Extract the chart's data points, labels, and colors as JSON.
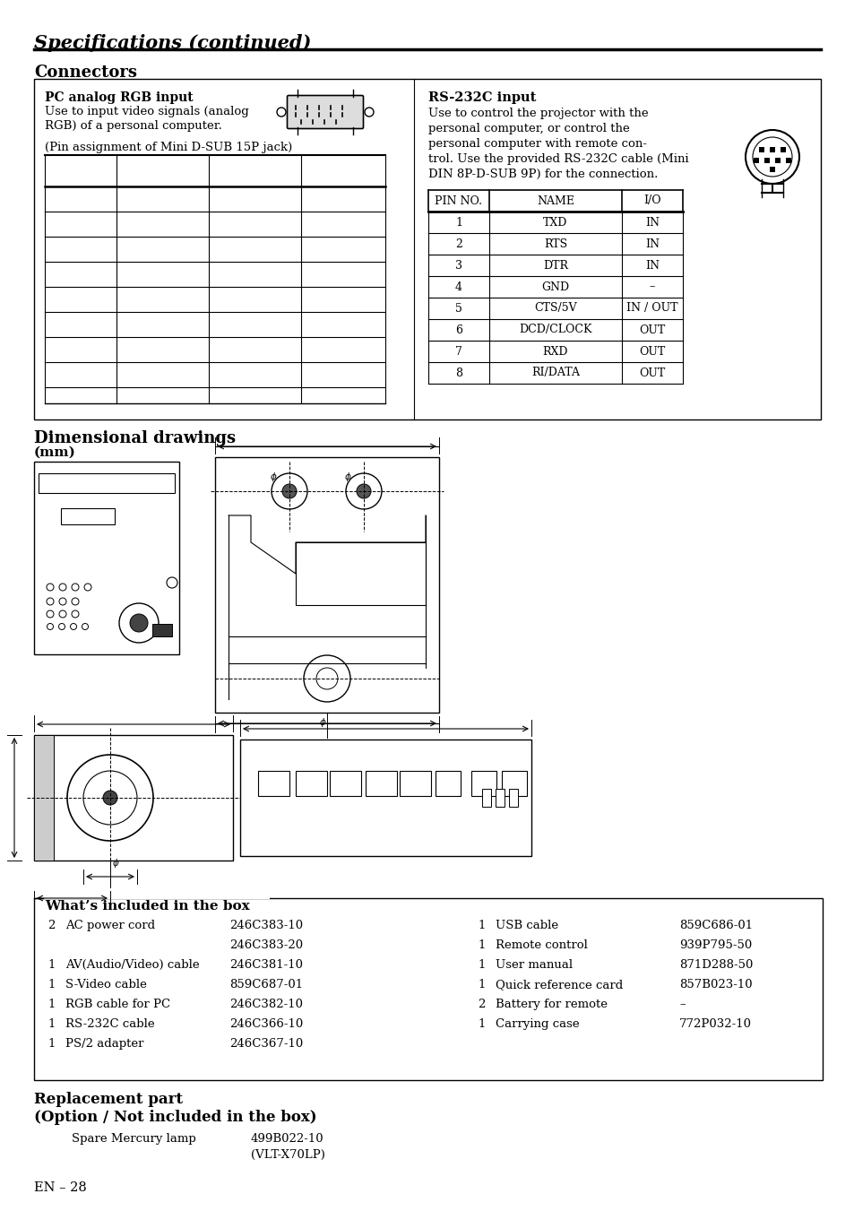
{
  "title": "Specifications (continued)",
  "section1": "Connectors",
  "pc_title": "PC analog RGB input",
  "pc_text1": "Use to input video signals (analog",
  "pc_text2": "RGB) of a personal computer.",
  "pc_text3": "(Pin assignment of Mini D-SUB 15P jack)",
  "rs_title": "RS-232C input",
  "rs_text_lines": [
    "Use to control the projector with the",
    "personal computer, or control the",
    "personal computer with remote con-",
    "trol. Use the provided RS-232C cable (Mini",
    "DIN 8P-D-SUB 9P) for the connection."
  ],
  "rs_table_headers": [
    "PIN NO.",
    "NAME",
    "I/O"
  ],
  "rs_table_rows": [
    [
      "1",
      "TXD",
      "IN"
    ],
    [
      "2",
      "RTS",
      "IN"
    ],
    [
      "3",
      "DTR",
      "IN"
    ],
    [
      "4",
      "GND",
      "–"
    ],
    [
      "5",
      "CTS/5V",
      "IN / OUT"
    ],
    [
      "6",
      "DCD/CLOCK",
      "OUT"
    ],
    [
      "7",
      "RXD",
      "OUT"
    ],
    [
      "8",
      "RI/DATA",
      "OUT"
    ]
  ],
  "section2_line1": "Dimensional drawings",
  "section2_line2": "(mm)",
  "box_section": "What’s included in the box",
  "box_items_left": [
    [
      "2",
      "AC power cord",
      "246C383-10"
    ],
    [
      "",
      "",
      "246C383-20"
    ],
    [
      "1",
      "AV(Audio/Video) cable",
      "246C381-10"
    ],
    [
      "1",
      "S-Video cable",
      "859C687-01"
    ],
    [
      "1",
      "RGB cable for PC",
      "246C382-10"
    ],
    [
      "1",
      "RS-232C cable",
      "246C366-10"
    ],
    [
      "1",
      "PS/2 adapter",
      "246C367-10"
    ]
  ],
  "box_items_right": [
    [
      "1",
      "USB cable",
      "859C686-01"
    ],
    [
      "1",
      "Remote control",
      "939P795-50"
    ],
    [
      "1",
      "User manual",
      "871D288-50"
    ],
    [
      "1",
      "Quick reference card",
      "857B023-10"
    ],
    [
      "2",
      "Battery for remote",
      "–"
    ],
    [
      "1",
      "Carrying case",
      "772P032-10"
    ]
  ],
  "replacement_title1": "Replacement part",
  "replacement_title2": "(Option / Not included in the box)",
  "replacement_item": "Spare Mercury lamp",
  "replacement_code1": "499B022-10",
  "replacement_code2": "(VLT-X70LP)",
  "footer": "EN – 28"
}
